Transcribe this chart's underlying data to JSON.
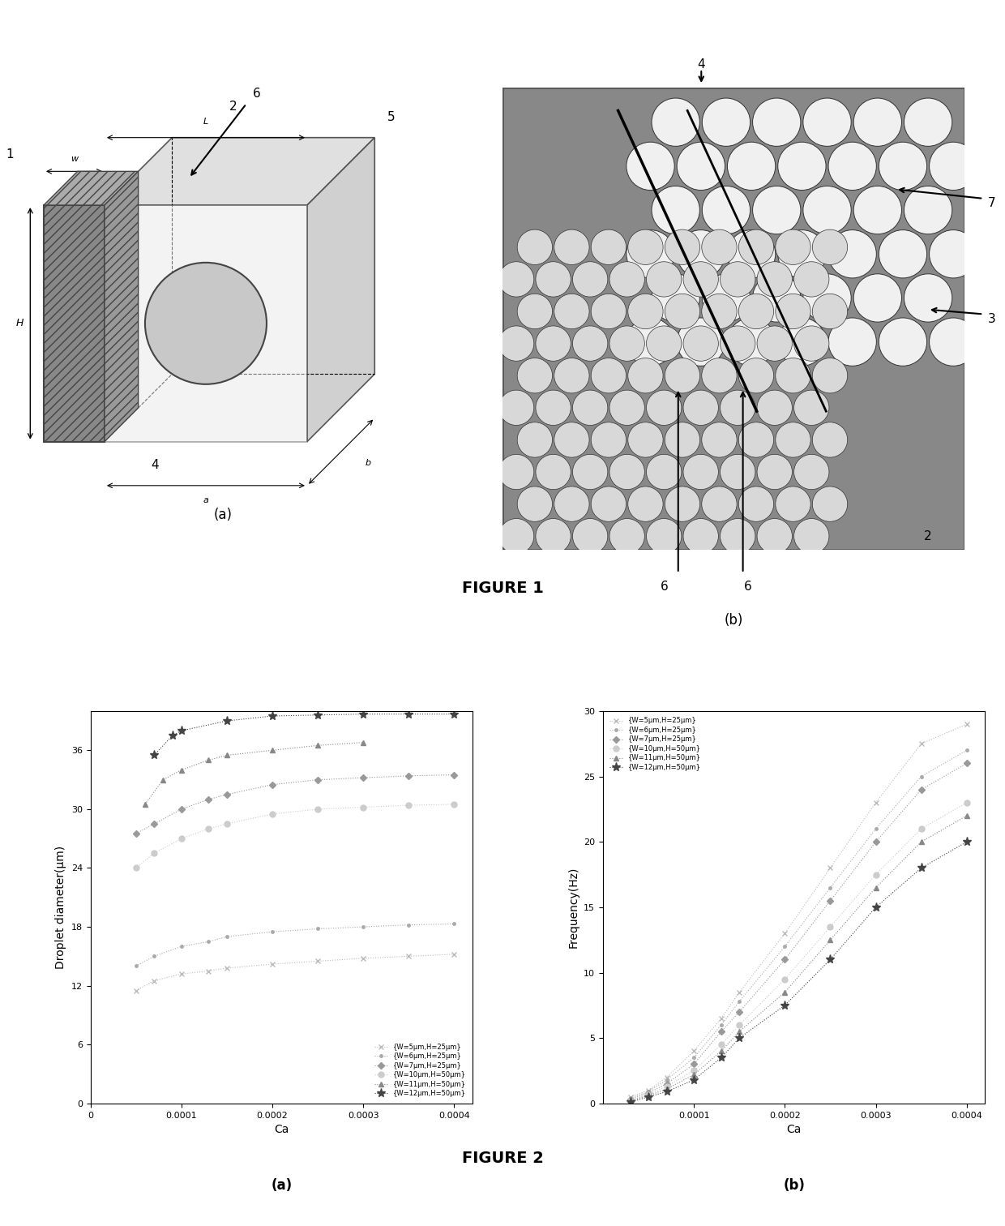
{
  "fig2a": {
    "xlabel": "Ca",
    "ylabel": "Droplet diameter(μm)",
    "xlim": [
      0.0,
      0.00042
    ],
    "ylim": [
      0,
      40
    ],
    "xticks": [
      0.0,
      0.0001,
      0.0002,
      0.0003,
      0.0004
    ],
    "xtick_labels": [
      "0",
      "0.0001",
      "0.0002",
      "0.0003",
      "0.0004"
    ],
    "yticks": [
      0,
      6,
      12,
      18,
      24,
      30,
      36
    ],
    "series": [
      {
        "label": "{W=5μm,H=25μm}",
        "marker": "x",
        "color": "#bbbbbb",
        "linestyle": ":",
        "x": [
          5e-05,
          7e-05,
          0.0001,
          0.00013,
          0.00015,
          0.0002,
          0.00025,
          0.0003,
          0.00035,
          0.0004
        ],
        "y": [
          11.5,
          12.5,
          13.2,
          13.5,
          13.8,
          14.2,
          14.5,
          14.8,
          15.0,
          15.2
        ]
      },
      {
        "label": "{W=6μm,H=25μm}",
        "marker": ".",
        "color": "#aaaaaa",
        "linestyle": ":",
        "x": [
          5e-05,
          7e-05,
          0.0001,
          0.00013,
          0.00015,
          0.0002,
          0.00025,
          0.0003,
          0.00035,
          0.0004
        ],
        "y": [
          14.0,
          15.0,
          16.0,
          16.5,
          17.0,
          17.5,
          17.8,
          18.0,
          18.2,
          18.3
        ]
      },
      {
        "label": "{W=7μm,H=25μm}",
        "marker": "D",
        "color": "#999999",
        "linestyle": ":",
        "x": [
          5e-05,
          7e-05,
          0.0001,
          0.00013,
          0.00015,
          0.0002,
          0.00025,
          0.0003,
          0.00035,
          0.0004
        ],
        "y": [
          27.5,
          28.5,
          30.0,
          31.0,
          31.5,
          32.5,
          33.0,
          33.2,
          33.4,
          33.5
        ]
      },
      {
        "label": "{W=10μm,H=50μm}",
        "marker": "o",
        "color": "#cccccc",
        "linestyle": ":",
        "x": [
          5e-05,
          7e-05,
          0.0001,
          0.00013,
          0.00015,
          0.0002,
          0.00025,
          0.0003,
          0.00035,
          0.0004
        ],
        "y": [
          24.0,
          25.5,
          27.0,
          28.0,
          28.5,
          29.5,
          30.0,
          30.2,
          30.4,
          30.5
        ]
      },
      {
        "label": "{W=11μm,H=50μm}",
        "marker": "^",
        "color": "#888888",
        "linestyle": ":",
        "x": [
          6e-05,
          8e-05,
          0.0001,
          0.00013,
          0.00015,
          0.0002,
          0.00025,
          0.0003
        ],
        "y": [
          30.5,
          33.0,
          34.0,
          35.0,
          35.5,
          36.0,
          36.5,
          36.8
        ]
      },
      {
        "label": "{W=12μm,H=50μm}",
        "marker": "*",
        "color": "#444444",
        "linestyle": ":",
        "x": [
          7e-05,
          9e-05,
          0.0001,
          0.00015,
          0.0002,
          0.00025,
          0.0003,
          0.00035,
          0.0004
        ],
        "y": [
          35.5,
          37.5,
          38.0,
          39.0,
          39.5,
          39.6,
          39.7,
          39.7,
          39.7
        ]
      }
    ]
  },
  "fig2b": {
    "xlabel": "Ca",
    "ylabel": "Frequency(Hz)",
    "xlim": [
      0.0,
      0.00042
    ],
    "ylim": [
      0,
      30
    ],
    "xticks": [
      0.0001,
      0.0002,
      0.0003,
      0.0004
    ],
    "xtick_labels": [
      "0.0001",
      "0.0002",
      "0.0003",
      "0.0004"
    ],
    "yticks": [
      0,
      5,
      10,
      15,
      20,
      25,
      30
    ],
    "series": [
      {
        "label": "{W=5μm,H=25μm}",
        "marker": "x",
        "color": "#bbbbbb",
        "linestyle": ":",
        "x": [
          3e-05,
          5e-05,
          7e-05,
          0.0001,
          0.00013,
          0.00015,
          0.0002,
          0.00025,
          0.0003,
          0.00035,
          0.0004
        ],
        "y": [
          0.5,
          1.0,
          2.0,
          4.0,
          6.5,
          8.5,
          13.0,
          18.0,
          23.0,
          27.5,
          29.0
        ]
      },
      {
        "label": "{W=6μm,H=25μm}",
        "marker": ".",
        "color": "#aaaaaa",
        "linestyle": ":",
        "x": [
          3e-05,
          5e-05,
          7e-05,
          0.0001,
          0.00013,
          0.00015,
          0.0002,
          0.00025,
          0.0003,
          0.00035,
          0.0004
        ],
        "y": [
          0.4,
          0.9,
          1.8,
          3.5,
          6.0,
          7.8,
          12.0,
          16.5,
          21.0,
          25.0,
          27.0
        ]
      },
      {
        "label": "{W=7μm,H=25μm}",
        "marker": "D",
        "color": "#999999",
        "linestyle": ":",
        "x": [
          3e-05,
          5e-05,
          7e-05,
          0.0001,
          0.00013,
          0.00015,
          0.0002,
          0.00025,
          0.0003,
          0.00035,
          0.0004
        ],
        "y": [
          0.3,
          0.8,
          1.5,
          3.0,
          5.5,
          7.0,
          11.0,
          15.5,
          20.0,
          24.0,
          26.0
        ]
      },
      {
        "label": "{W=10μm,H=50μm}",
        "marker": "o",
        "color": "#cccccc",
        "linestyle": ":",
        "x": [
          3e-05,
          5e-05,
          7e-05,
          0.0001,
          0.00013,
          0.00015,
          0.0002,
          0.00025,
          0.0003,
          0.00035,
          0.0004
        ],
        "y": [
          0.2,
          0.7,
          1.3,
          2.5,
          4.5,
          6.0,
          9.5,
          13.5,
          17.5,
          21.0,
          23.0
        ]
      },
      {
        "label": "{W=11μm,H=50μm}",
        "marker": "^",
        "color": "#888888",
        "linestyle": ":",
        "x": [
          3e-05,
          5e-05,
          7e-05,
          0.0001,
          0.00013,
          0.00015,
          0.0002,
          0.00025,
          0.0003,
          0.00035,
          0.0004
        ],
        "y": [
          0.2,
          0.6,
          1.1,
          2.2,
          4.0,
          5.5,
          8.5,
          12.5,
          16.5,
          20.0,
          22.0
        ]
      },
      {
        "label": "{W=12μm,H=50μm}",
        "marker": "*",
        "color": "#444444",
        "linestyle": ":",
        "x": [
          3e-05,
          5e-05,
          7e-05,
          0.0001,
          0.00013,
          0.00015,
          0.0002,
          0.00025,
          0.0003,
          0.00035,
          0.0004
        ],
        "y": [
          0.1,
          0.5,
          0.9,
          1.8,
          3.5,
          5.0,
          7.5,
          11.0,
          15.0,
          18.0,
          20.0
        ]
      }
    ]
  },
  "figure1_caption": "FIGURE 1",
  "figure2_caption": "FIGURE 2",
  "background_color": "#ffffff"
}
